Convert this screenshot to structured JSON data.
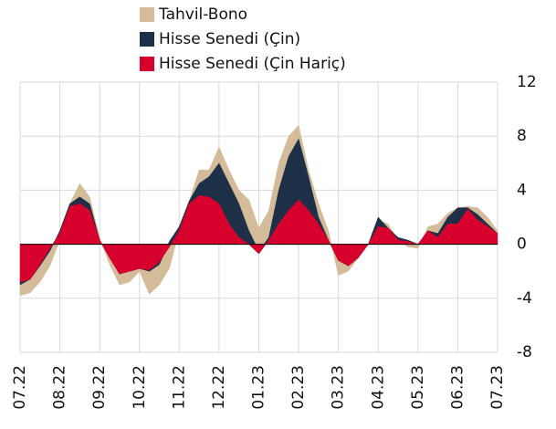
{
  "chart_data": {
    "type": "stacked_area",
    "categories": [
      "07.22",
      null,
      null,
      null,
      "08.22",
      null,
      null,
      null,
      "09.22",
      null,
      null,
      null,
      "10.22",
      null,
      null,
      null,
      "11.22",
      null,
      null,
      null,
      "12.22",
      null,
      null,
      null,
      "01.23",
      null,
      null,
      null,
      "02.23",
      null,
      null,
      null,
      "03.23",
      null,
      null,
      null,
      "04.23",
      null,
      null,
      null,
      "05.23",
      null,
      null,
      null,
      "06.23",
      null,
      null,
      null,
      "07.23"
    ],
    "series": [
      {
        "name": "Hisse Senedi (Çin Hariç)",
        "color": "#d7002d",
        "values": [
          -2.8,
          -2.6,
          -1.5,
          -0.3,
          0.8,
          2.8,
          3.0,
          2.5,
          0.3,
          -1,
          -2.2,
          -2,
          -1.8,
          -1.9,
          -1.3,
          -0.2,
          1.0,
          3.0,
          3.6,
          3.5,
          3.0,
          1.5,
          0.5,
          0.0,
          -0.7,
          0.3,
          1.5,
          2.5,
          3.3,
          2.5,
          1.5,
          0.3,
          -1.2,
          -1.6,
          -1.0,
          0.0,
          1.3,
          1.2,
          0.3,
          0.2,
          0.0,
          1.0,
          0.5,
          1.5,
          1.5,
          2.6,
          1.8,
          1.3,
          0.8
        ]
      },
      {
        "name": "Hisse Senedi (Çin)",
        "color": "#1e3048",
        "values": [
          -0.2,
          0,
          -0.1,
          -0.2,
          0.2,
          0.2,
          0.5,
          0.5,
          0,
          0,
          0,
          0,
          0,
          -0.1,
          -0.2,
          0.4,
          0.3,
          0.2,
          0.9,
          1.5,
          3.0,
          3.0,
          2.5,
          1.0,
          0.2,
          0.2,
          2.5,
          4.0,
          4.5,
          2.5,
          0.5,
          0,
          0,
          0,
          0,
          0,
          0.7,
          0,
          0.2,
          0.1,
          0,
          0,
          0.3,
          0.5,
          1.2,
          0.1,
          0.4,
          0.2,
          0
        ]
      },
      {
        "name": "Tahvil-Bono",
        "color": "#d4bc9a",
        "values": [
          -0.8,
          -1.0,
          -1.2,
          -1.1,
          -0.7,
          0,
          1.0,
          0.5,
          0.2,
          -0.5,
          -0.8,
          -0.8,
          -0.2,
          -1.7,
          -1.5,
          -2.0,
          -0.3,
          0,
          1.0,
          0.5,
          1.2,
          1.0,
          1.0,
          2.3,
          1.7,
          2.0,
          2.0,
          1.5,
          1.0,
          0.5,
          1.0,
          0.7,
          -1.1,
          -0.4,
          0,
          0,
          -0.2,
          0.3,
          -0.2,
          -0.5,
          -0.3,
          0.3,
          0.7,
          0.3,
          0,
          0.1,
          0.5,
          0.5,
          0.2
        ]
      }
    ],
    "ylim": [
      -8,
      12
    ],
    "yticks": [
      -8,
      -4,
      0,
      4,
      8,
      12
    ],
    "grid": true,
    "legend": "top"
  }
}
